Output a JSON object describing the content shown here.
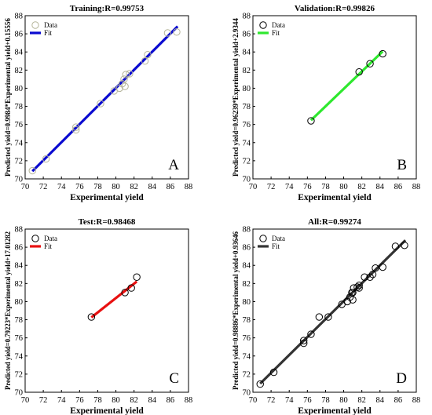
{
  "chart_data": [
    {
      "type": "scatter",
      "panel": "A",
      "title": "Training:R=0.99753",
      "xlabel": "Experimental yield",
      "ylabel": "Predicted yield=0.9984*Experimental yield+0.15556",
      "xlim": [
        70,
        88
      ],
      "ylim": [
        70,
        88
      ],
      "xticks": [
        70,
        72,
        74,
        76,
        78,
        80,
        82,
        84,
        86,
        88
      ],
      "yticks": [
        70,
        72,
        74,
        76,
        78,
        80,
        82,
        84,
        86,
        88
      ],
      "legend": {
        "placement": "top-left",
        "entries": [
          "Data",
          "Fit"
        ]
      },
      "fit_color": "#0a0ad0",
      "marker_color": "#b5b59a",
      "fit": {
        "slope": 0.9984,
        "intercept": 0.15556,
        "x_range": [
          70.8,
          86.8
        ]
      },
      "series": [
        {
          "name": "Data",
          "x": [
            70.8,
            72.3,
            75.6,
            75.6,
            78.3,
            79.8,
            80.4,
            80.7,
            81.0,
            80.9,
            81.1,
            81.5,
            83.2,
            83.5,
            85.7,
            86.7
          ],
          "y": [
            70.9,
            72.2,
            75.4,
            75.7,
            78.3,
            79.7,
            80.0,
            80.5,
            80.2,
            81.0,
            81.5,
            81.6,
            83.0,
            83.7,
            86.1,
            86.2
          ]
        }
      ],
      "x_axis_label_visible": true
    },
    {
      "type": "scatter",
      "panel": "B",
      "title": "Validation:R=0.99826",
      "xlabel": "Experimental yield",
      "ylabel": "Predicted yield=0.96239*Experimental yield+2.9344",
      "xlim": [
        70,
        88
      ],
      "ylim": [
        70,
        88
      ],
      "xticks": [
        70,
        72,
        74,
        76,
        78,
        80,
        82,
        84,
        86,
        88
      ],
      "yticks": [
        70,
        72,
        74,
        76,
        78,
        80,
        82,
        84,
        86,
        88
      ],
      "legend": {
        "placement": "top-left",
        "entries": [
          "Data",
          "Fit"
        ]
      },
      "fit_color": "#2ee82e",
      "marker_color": "#000000",
      "fit": {
        "slope": 0.96239,
        "intercept": 2.9344,
        "x_range": [
          76.4,
          84.3
        ]
      },
      "series": [
        {
          "name": "Data",
          "x": [
            76.4,
            81.7,
            82.9,
            84.3
          ],
          "y": [
            76.4,
            81.8,
            82.7,
            83.8
          ]
        }
      ]
    },
    {
      "type": "scatter",
      "panel": "C",
      "title": "Test:R=0.98468",
      "xlabel": "Experimental yield",
      "ylabel": "Predicted yield=0.79223*Experimental yield+17.01282",
      "xlim": [
        70,
        88
      ],
      "ylim": [
        70,
        88
      ],
      "xticks": [
        70,
        72,
        74,
        76,
        78,
        80,
        82,
        84,
        86,
        88
      ],
      "yticks": [
        70,
        72,
        74,
        76,
        78,
        80,
        82,
        84,
        86,
        88
      ],
      "legend": {
        "placement": "top-left",
        "entries": [
          "Data",
          "Fit"
        ]
      },
      "fit_color": "#e81010",
      "marker_color": "#000000",
      "fit": {
        "slope": 0.79223,
        "intercept": 17.01282,
        "x_range": [
          77.3,
          82.3
        ]
      },
      "series": [
        {
          "name": "Data",
          "x": [
            77.3,
            81.0,
            81.7,
            82.3
          ],
          "y": [
            78.3,
            81.0,
            81.5,
            82.7
          ]
        }
      ]
    },
    {
      "type": "scatter",
      "panel": "D",
      "title": "All:R=0.99274",
      "xlabel": "Experimental yield",
      "ylabel": "Predicted yield=0.98886*Experimental yield+0.93646",
      "xlim": [
        70,
        88
      ],
      "ylim": [
        70,
        88
      ],
      "xticks": [
        70,
        72,
        74,
        76,
        78,
        80,
        82,
        84,
        86,
        88
      ],
      "yticks": [
        70,
        72,
        74,
        76,
        78,
        80,
        82,
        84,
        86,
        88
      ],
      "legend": {
        "placement": "top-left",
        "entries": [
          "Data",
          "Fit"
        ]
      },
      "fit_color": "#333333",
      "marker_color": "#000000",
      "fit": {
        "slope": 0.98886,
        "intercept": 0.93646,
        "x_range": [
          70.8,
          86.8
        ]
      },
      "series": [
        {
          "name": "Data",
          "x": [
            70.8,
            72.3,
            75.6,
            75.6,
            76.4,
            77.3,
            78.3,
            79.8,
            80.4,
            80.7,
            81.0,
            80.9,
            81.0,
            81.1,
            81.5,
            81.7,
            81.7,
            82.3,
            82.9,
            83.2,
            83.5,
            84.3,
            85.7,
            86.7
          ],
          "y": [
            70.9,
            72.2,
            75.4,
            75.7,
            76.4,
            78.3,
            78.3,
            79.7,
            80.0,
            80.5,
            80.2,
            81.0,
            81.0,
            81.5,
            81.6,
            81.8,
            81.5,
            82.7,
            82.7,
            83.0,
            83.7,
            83.8,
            86.1,
            86.2
          ]
        }
      ]
    }
  ]
}
